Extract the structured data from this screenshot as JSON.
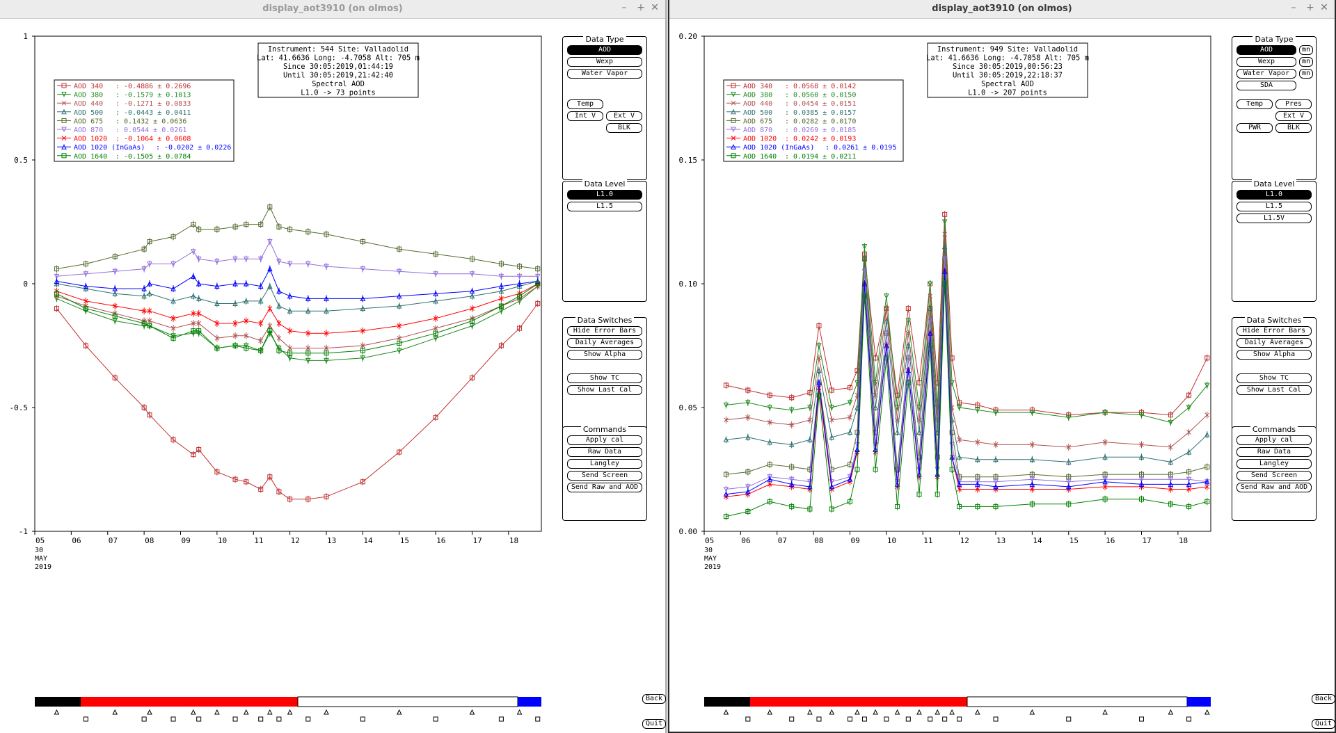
{
  "windows": [
    {
      "title": "display_aot3910 (on olmos)",
      "info": [
        "Instrument: 544 Site: Valladolid",
        "Lat: 41.6636 Long: -4.7058 Alt: 705 m",
        "Since 30:05:2019,01:44:19",
        "Until 30:05:2019,21:42:40",
        "Spectral AOD",
        "L1.0 -> 73 points"
      ],
      "legend": [
        {
          "label": "AOD 340",
          "stat": ": -0.4886 ± 0.2696",
          "color": "#c03030"
        },
        {
          "label": "AOD 380",
          "stat": ": -0.1579 ± 0.1013",
          "color": "#1e8a1e"
        },
        {
          "label": "AOD 440",
          "stat": ": -0.1271 ± 0.0833",
          "color": "#b05050"
        },
        {
          "label": "AOD 500",
          "stat": ": -0.0443 ± 0.0411",
          "color": "#2e7070"
        },
        {
          "label": "AOD 675",
          "stat": ": 0.1432 ± 0.0636",
          "color": "#556b2f"
        },
        {
          "label": "AOD 870",
          "stat": ": 0.0544 ± 0.0261",
          "color": "#9370db"
        },
        {
          "label": "AOD 1020",
          "stat": ": -0.1064 ± 0.0608",
          "color": "#ff0000"
        },
        {
          "label": "AOD 1020 (InGaAs)",
          "stat": ": -0.0202 ± 0.0226",
          "color": "#0000ff"
        },
        {
          "label": "AOD 1640",
          "stat": ": -0.1505 ± 0.0784",
          "color": "#008000"
        }
      ],
      "y_ticks": [
        "1",
        "0.5",
        "0",
        "-0.5",
        "-1"
      ],
      "x_ticks": [
        "05",
        "06",
        "07",
        "08",
        "09",
        "10",
        "11",
        "12",
        "13",
        "14",
        "15",
        "16",
        "17",
        "18"
      ],
      "date_label": [
        "30",
        "MAY",
        "2019"
      ],
      "data_type_buttons": [
        "AOD",
        "Wexp",
        "Water Vapor",
        "Temp",
        "Int V",
        "Ext V",
        "BLK"
      ],
      "data_level_buttons": [
        "L1.0",
        "L1.5"
      ],
      "data_switches": [
        "Hide Error Bars",
        "Daily Averages",
        "Show Alpha",
        "Show TC",
        "Show Last Cal"
      ],
      "commands": [
        "Apply cal",
        "Raw Data",
        "Langley",
        "Send Screen",
        "Send Raw and AOD"
      ],
      "side_buttons": [
        "Back",
        "Quit"
      ]
    },
    {
      "title": "display_aot3910 (on olmos)",
      "info": [
        "Instrument: 949 Site: Valladolid",
        "Lat: 41.6636 Long: -4.7058 Alt: 705 m",
        "Since 30:05:2019,00:56:23",
        "Until 30:05:2019,22:18:37",
        "Spectral AOD",
        "L1.0 -> 207 points"
      ],
      "legend": [
        {
          "label": "AOD 340",
          "stat": ": 0.0568 ± 0.0142",
          "color": "#c03030"
        },
        {
          "label": "AOD 380",
          "stat": ": 0.0560 ± 0.0150",
          "color": "#1e8a1e"
        },
        {
          "label": "AOD 440",
          "stat": ": 0.0454 ± 0.0151",
          "color": "#b05050"
        },
        {
          "label": "AOD 500",
          "stat": ": 0.0385 ± 0.0157",
          "color": "#2e7070"
        },
        {
          "label": "AOD 675",
          "stat": ": 0.0282 ± 0.0170",
          "color": "#556b2f"
        },
        {
          "label": "AOD 870",
          "stat": ": 0.0269 ± 0.0185",
          "color": "#9370db"
        },
        {
          "label": "AOD 1020",
          "stat": ": 0.0242 ± 0.0193",
          "color": "#ff0000"
        },
        {
          "label": "AOD 1020 (InGaAs)",
          "stat": ": 0.0261 ± 0.0195",
          "color": "#0000ff"
        },
        {
          "label": "AOD 1640",
          "stat": ": 0.0194 ± 0.0211",
          "color": "#008000"
        }
      ],
      "y_ticks": [
        "0.20",
        "0.15",
        "0.10",
        "0.05",
        "0.00"
      ],
      "x_ticks": [
        "05",
        "06",
        "07",
        "08",
        "09",
        "10",
        "11",
        "12",
        "13",
        "14",
        "15",
        "16",
        "17",
        "18"
      ],
      "date_label": [
        "30",
        "MAY",
        "2019"
      ],
      "data_type_buttons": [
        "AOD",
        "mn",
        "Wexp",
        "mn",
        "Water Vapor",
        "mn",
        "SDA",
        "Temp",
        "Pres",
        "Ext V",
        "PWR",
        "BLK"
      ],
      "data_level_buttons": [
        "L1.0",
        "L1.5",
        "L1.5V"
      ],
      "data_switches": [
        "Hide Error Bars",
        "Daily Averages",
        "Show Alpha",
        "Show TC",
        "Show Last Cal"
      ],
      "commands": [
        "Apply cal",
        "Raw Data",
        "Langley",
        "Send Screen",
        "Send Raw and AOD"
      ],
      "side_buttons": [
        "Back",
        "Quit"
      ]
    }
  ],
  "panel_titles": {
    "data_type": "Data Type",
    "data_level": "Data Level",
    "data_switches": "Data Switches",
    "commands": "Commands"
  },
  "chart_data": [
    {
      "type": "line",
      "ylim": [
        -1,
        1
      ],
      "xlim": [
        5,
        18.9
      ],
      "x": [
        5.6,
        6.4,
        7.2,
        8.0,
        8.15,
        8.8,
        9.35,
        9.5,
        10.0,
        10.5,
        10.8,
        11.2,
        11.45,
        11.7,
        12.0,
        12.5,
        13.0,
        14.0,
        15.0,
        16.0,
        17.0,
        17.8,
        18.3,
        18.8
      ],
      "series": [
        {
          "name": "AOD 340",
          "values": [
            -0.1,
            -0.25,
            -0.38,
            -0.5,
            -0.53,
            -0.63,
            -0.69,
            -0.67,
            -0.76,
            -0.79,
            -0.8,
            -0.83,
            -0.78,
            -0.84,
            -0.87,
            -0.87,
            -0.86,
            -0.8,
            -0.68,
            -0.54,
            -0.38,
            -0.25,
            -0.18,
            -0.08
          ]
        },
        {
          "name": "AOD 380",
          "values": [
            -0.06,
            -0.11,
            -0.15,
            -0.17,
            -0.17,
            -0.21,
            -0.2,
            -0.2,
            -0.26,
            -0.25,
            -0.25,
            -0.27,
            -0.2,
            -0.26,
            -0.3,
            -0.31,
            -0.31,
            -0.3,
            -0.27,
            -0.22,
            -0.17,
            -0.11,
            -0.07,
            -0.01
          ]
        },
        {
          "name": "AOD 440",
          "values": [
            -0.05,
            -0.09,
            -0.12,
            -0.15,
            -0.15,
            -0.18,
            -0.16,
            -0.16,
            -0.22,
            -0.21,
            -0.21,
            -0.23,
            -0.17,
            -0.22,
            -0.26,
            -0.26,
            -0.26,
            -0.25,
            -0.22,
            -0.18,
            -0.14,
            -0.09,
            -0.06,
            -0.01
          ]
        },
        {
          "name": "AOD 500",
          "values": [
            0.0,
            -0.02,
            -0.04,
            -0.05,
            -0.04,
            -0.07,
            -0.05,
            -0.06,
            -0.08,
            -0.08,
            -0.07,
            -0.07,
            -0.01,
            -0.09,
            -0.11,
            -0.11,
            -0.11,
            -0.1,
            -0.09,
            -0.07,
            -0.05,
            -0.03,
            -0.01,
            0.01
          ]
        },
        {
          "name": "AOD 675",
          "values": [
            0.06,
            0.08,
            0.11,
            0.14,
            0.17,
            0.19,
            0.24,
            0.22,
            0.22,
            0.23,
            0.24,
            0.24,
            0.31,
            0.23,
            0.22,
            0.21,
            0.2,
            0.17,
            0.14,
            0.12,
            0.1,
            0.08,
            0.07,
            0.06
          ]
        },
        {
          "name": "AOD 870",
          "values": [
            0.03,
            0.04,
            0.05,
            0.06,
            0.08,
            0.08,
            0.13,
            0.1,
            0.09,
            0.1,
            0.1,
            0.1,
            0.17,
            0.09,
            0.08,
            0.08,
            0.07,
            0.06,
            0.05,
            0.04,
            0.04,
            0.03,
            0.03,
            0.03
          ]
        },
        {
          "name": "AOD 1020",
          "values": [
            -0.03,
            -0.07,
            -0.09,
            -0.11,
            -0.11,
            -0.14,
            -0.12,
            -0.12,
            -0.16,
            -0.16,
            -0.15,
            -0.16,
            -0.1,
            -0.16,
            -0.19,
            -0.2,
            -0.2,
            -0.19,
            -0.17,
            -0.14,
            -0.1,
            -0.06,
            -0.04,
            0.0
          ]
        },
        {
          "name": "AOD 1020 (InGaAs)",
          "values": [
            0.01,
            -0.01,
            -0.02,
            -0.02,
            0.0,
            -0.02,
            0.03,
            0.0,
            -0.01,
            0.0,
            0.0,
            -0.01,
            0.06,
            -0.03,
            -0.05,
            -0.06,
            -0.06,
            -0.06,
            -0.05,
            -0.04,
            -0.03,
            -0.01,
            0.0,
            0.01
          ]
        },
        {
          "name": "AOD 1640",
          "values": [
            -0.04,
            -0.1,
            -0.13,
            -0.16,
            -0.17,
            -0.22,
            -0.19,
            -0.19,
            -0.26,
            -0.25,
            -0.26,
            -0.27,
            -0.19,
            -0.27,
            -0.28,
            -0.28,
            -0.28,
            -0.27,
            -0.24,
            -0.2,
            -0.15,
            -0.09,
            -0.05,
            0.0
          ]
        }
      ]
    },
    {
      "type": "line",
      "ylim": [
        0,
        0.2
      ],
      "xlim": [
        5,
        18.9
      ],
      "x": [
        5.6,
        6.2,
        6.8,
        7.4,
        7.9,
        8.15,
        8.5,
        9.0,
        9.2,
        9.4,
        9.7,
        10.0,
        10.3,
        10.6,
        10.9,
        11.2,
        11.4,
        11.6,
        11.8,
        12.0,
        12.5,
        13.0,
        14.0,
        15.0,
        16.0,
        17.0,
        17.8,
        18.3,
        18.8
      ],
      "series": [
        {
          "name": "AOD 340",
          "values": [
            0.059,
            0.057,
            0.055,
            0.054,
            0.056,
            0.083,
            0.057,
            0.058,
            0.065,
            0.112,
            0.07,
            0.09,
            0.055,
            0.09,
            0.06,
            0.1,
            0.06,
            0.128,
            0.07,
            0.052,
            0.051,
            0.049,
            0.049,
            0.047,
            0.048,
            0.048,
            0.047,
            0.055,
            0.07
          ]
        },
        {
          "name": "AOD 380",
          "values": [
            0.051,
            0.052,
            0.05,
            0.049,
            0.05,
            0.075,
            0.05,
            0.052,
            0.06,
            0.115,
            0.06,
            0.095,
            0.05,
            0.085,
            0.05,
            0.1,
            0.05,
            0.125,
            0.06,
            0.05,
            0.049,
            0.048,
            0.048,
            0.046,
            0.048,
            0.047,
            0.044,
            0.05,
            0.059
          ]
        },
        {
          "name": "AOD 440",
          "values": [
            0.045,
            0.046,
            0.044,
            0.043,
            0.045,
            0.07,
            0.045,
            0.046,
            0.055,
            0.11,
            0.055,
            0.09,
            0.045,
            0.08,
            0.045,
            0.095,
            0.045,
            0.12,
            0.05,
            0.037,
            0.036,
            0.035,
            0.035,
            0.034,
            0.036,
            0.035,
            0.034,
            0.04,
            0.047
          ]
        },
        {
          "name": "AOD 500",
          "values": [
            0.037,
            0.038,
            0.036,
            0.035,
            0.037,
            0.065,
            0.038,
            0.04,
            0.05,
            0.11,
            0.05,
            0.085,
            0.04,
            0.075,
            0.04,
            0.09,
            0.04,
            0.115,
            0.045,
            0.03,
            0.029,
            0.029,
            0.029,
            0.028,
            0.03,
            0.03,
            0.028,
            0.032,
            0.039
          ]
        },
        {
          "name": "AOD 675",
          "values": [
            0.023,
            0.024,
            0.027,
            0.026,
            0.025,
            0.06,
            0.025,
            0.027,
            0.04,
            0.11,
            0.04,
            0.08,
            0.025,
            0.07,
            0.03,
            0.09,
            0.03,
            0.11,
            0.04,
            0.022,
            0.022,
            0.022,
            0.023,
            0.022,
            0.023,
            0.023,
            0.023,
            0.024,
            0.026
          ]
        },
        {
          "name": "AOD 870",
          "values": [
            0.017,
            0.018,
            0.022,
            0.021,
            0.02,
            0.06,
            0.02,
            0.022,
            0.035,
            0.105,
            0.035,
            0.08,
            0.02,
            0.07,
            0.025,
            0.085,
            0.025,
            0.11,
            0.035,
            0.02,
            0.02,
            0.02,
            0.021,
            0.02,
            0.021,
            0.021,
            0.021,
            0.021,
            0.02
          ]
        },
        {
          "name": "AOD 1020",
          "values": [
            0.014,
            0.015,
            0.019,
            0.018,
            0.017,
            0.058,
            0.017,
            0.02,
            0.032,
            0.1,
            0.032,
            0.075,
            0.018,
            0.065,
            0.022,
            0.08,
            0.022,
            0.105,
            0.03,
            0.017,
            0.017,
            0.017,
            0.017,
            0.017,
            0.018,
            0.018,
            0.017,
            0.017,
            0.018
          ]
        },
        {
          "name": "AOD 1020 (InGaAs)",
          "values": [
            0.015,
            0.016,
            0.021,
            0.019,
            0.018,
            0.06,
            0.018,
            0.021,
            0.033,
            0.1,
            0.033,
            0.075,
            0.019,
            0.065,
            0.023,
            0.08,
            0.023,
            0.105,
            0.03,
            0.019,
            0.019,
            0.018,
            0.019,
            0.018,
            0.02,
            0.019,
            0.019,
            0.019,
            0.02
          ]
        },
        {
          "name": "AOD 1640",
          "values": [
            0.006,
            0.008,
            0.012,
            0.01,
            0.009,
            0.055,
            0.009,
            0.012,
            0.025,
            0.095,
            0.025,
            0.07,
            0.01,
            0.06,
            0.015,
            0.075,
            0.015,
            0.1,
            0.025,
            0.01,
            0.01,
            0.01,
            0.011,
            0.011,
            0.013,
            0.013,
            0.011,
            0.01,
            0.012
          ]
        }
      ]
    }
  ]
}
